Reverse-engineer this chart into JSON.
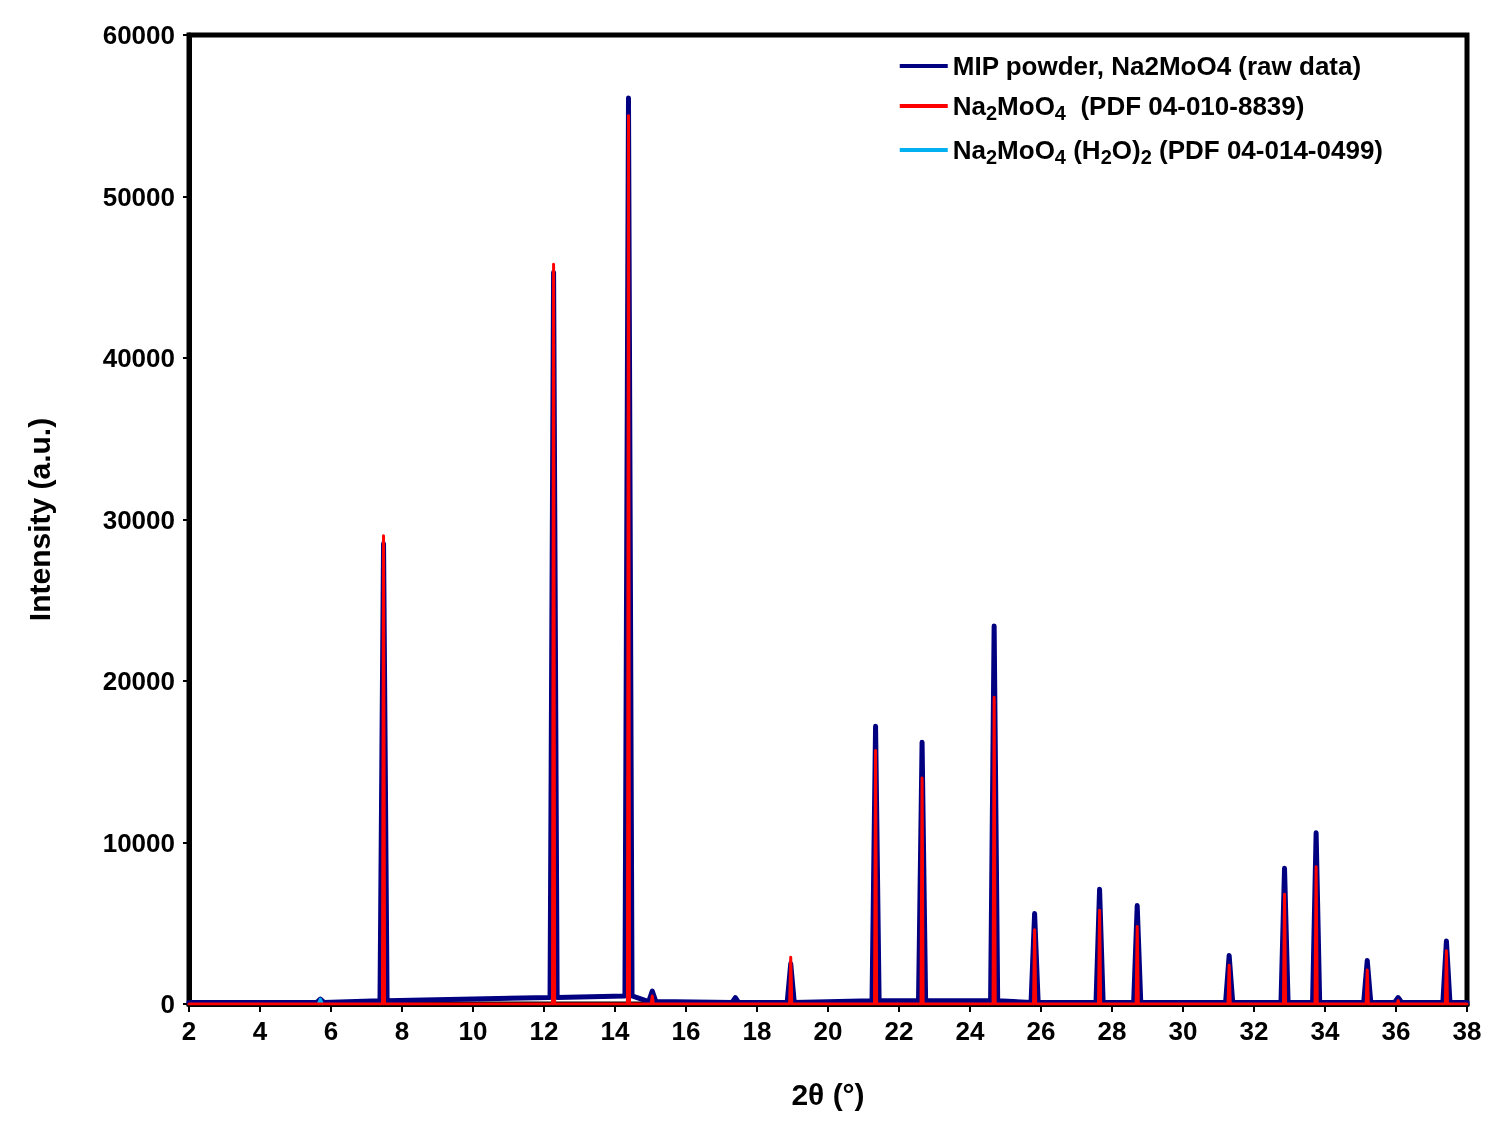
{
  "chart_data": {
    "type": "line",
    "xlabel": "2θ (°)",
    "ylabel": "Intensity (a.u.)",
    "xlim": [
      2,
      38
    ],
    "xticks": [
      2,
      4,
      6,
      8,
      10,
      12,
      14,
      16,
      18,
      20,
      22,
      24,
      26,
      28,
      30,
      32,
      34,
      36,
      38
    ],
    "ylim": [
      0,
      60000
    ],
    "yticks": [
      0,
      10000,
      20000,
      30000,
      40000,
      50000,
      60000
    ],
    "grid": false,
    "legend": "top right",
    "marker": "none",
    "line_style": "solid",
    "series": [
      {
        "name": "MIP powder, Na2MoO4 (raw data)",
        "color": "#000080",
        "x": [
          2,
          5.6,
          5.7,
          5.8,
          7.38,
          7.48,
          7.58,
          12.17,
          12.27,
          12.37,
          14.28,
          14.38,
          14.48,
          14.95,
          15.05,
          15.15,
          17.3,
          17.39,
          17.48,
          18.85,
          18.95,
          19.05,
          21.24,
          21.34,
          21.44,
          22.55,
          22.65,
          22.75,
          24.58,
          24.68,
          24.78,
          25.72,
          25.82,
          25.92,
          27.55,
          27.65,
          27.75,
          28.61,
          28.71,
          28.81,
          31.2,
          31.3,
          31.4,
          32.76,
          32.86,
          32.96,
          33.65,
          33.75,
          33.85,
          35.09,
          35.19,
          35.29,
          35.96,
          36.06,
          36.16,
          37.32,
          37.42,
          37.52,
          38
        ],
        "values": [
          100,
          100,
          300,
          100,
          200,
          28500,
          200,
          400,
          45300,
          400,
          500,
          56100,
          500,
          150,
          800,
          150,
          100,
          400,
          100,
          100,
          2500,
          100,
          200,
          17200,
          200,
          200,
          16200,
          200,
          200,
          23400,
          200,
          100,
          5600,
          100,
          100,
          7100,
          100,
          100,
          6100,
          100,
          100,
          3000,
          100,
          100,
          8400,
          100,
          100,
          10600,
          100,
          100,
          2700,
          100,
          100,
          400,
          100,
          100,
          3900,
          100,
          100
        ]
      },
      {
        "name": "Na$_{2}$MoO$_{4}$ (H$_{2}$O)$_{2}$ (PDF 04-014-0499)",
        "color": "#00b0f0",
        "x": [
          5.64,
          5.7,
          5.76
        ],
        "values": [
          0,
          300,
          0
        ]
      },
      {
        "name": "Na$_{2}$MoO$_{4}$  (PDF 04-010-8839)",
        "color": "#ff0000",
        "x": [
          2,
          7.45,
          7.48,
          7.51,
          12.24,
          12.27,
          12.3,
          14.35,
          14.38,
          14.41,
          15.02,
          15.05,
          15.08,
          18.92,
          18.95,
          18.98,
          21.31,
          21.34,
          21.37,
          22.62,
          22.65,
          22.68,
          24.65,
          24.68,
          24.71,
          25.79,
          25.82,
          25.85,
          27.62,
          27.65,
          27.68,
          28.68,
          28.71,
          28.74,
          31.27,
          31.3,
          31.33,
          32.83,
          32.86,
          32.89,
          33.72,
          33.75,
          33.78,
          35.16,
          35.19,
          35.22,
          36.03,
          36.06,
          36.09,
          37.39,
          37.42,
          37.45,
          38
        ],
        "values": [
          0,
          0,
          29000,
          0,
          0,
          45800,
          0,
          0,
          55000,
          0,
          0,
          500,
          0,
          0,
          2900,
          0,
          0,
          15700,
          0,
          0,
          14000,
          0,
          0,
          19000,
          0,
          0,
          4600,
          0,
          0,
          5800,
          0,
          0,
          4800,
          0,
          0,
          2400,
          0,
          0,
          6800,
          0,
          0,
          8500,
          0,
          0,
          2100,
          0,
          0,
          200,
          0,
          0,
          3300,
          0,
          0
        ]
      }
    ]
  }
}
